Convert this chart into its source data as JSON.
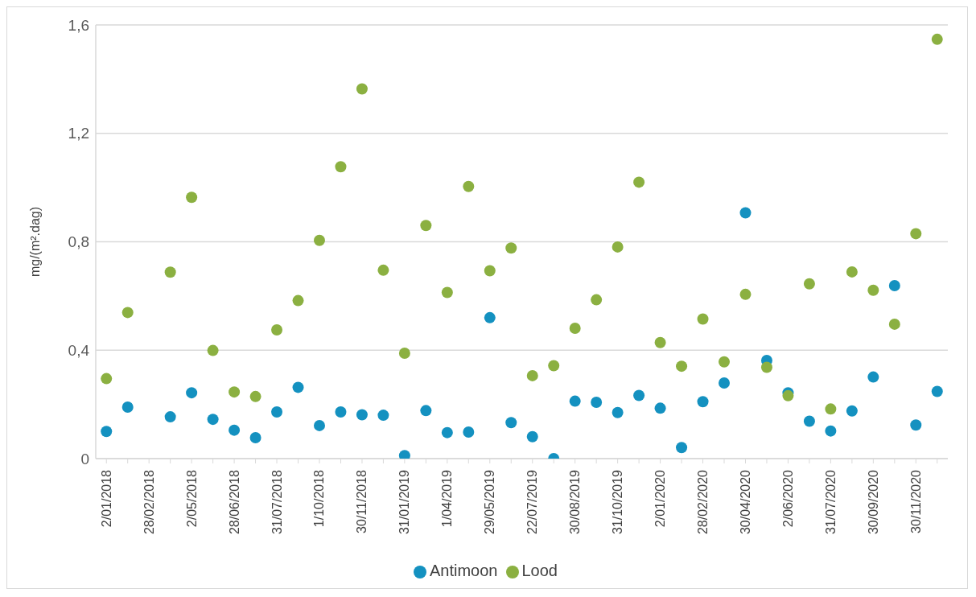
{
  "chart_data": {
    "type": "scatter",
    "ylabel": "mg/(m².dag)",
    "categories": [
      "2/01/2018",
      null,
      "28/02/2018",
      null,
      "2/05/2018",
      null,
      "28/06/2018",
      null,
      "31/07/2018",
      null,
      "1/10/2018",
      null,
      "30/11/2018",
      null,
      "31/01/2019",
      null,
      "1/04/2019",
      null,
      "29/05/2019",
      null,
      "22/07/2019",
      null,
      "30/08/2019",
      null,
      "31/10/2019",
      null,
      "2/01/2020",
      null,
      "28/02/2020",
      null,
      "30/04/2020",
      null,
      "2/06/2020",
      null,
      "31/07/2020",
      null,
      "30/09/2020",
      null,
      "30/11/2020",
      null
    ],
    "series": [
      {
        "name": "Antimoon",
        "color": "#1491c0",
        "values": [
          0.1,
          0.19,
          null,
          0.154,
          0.243,
          0.145,
          0.105,
          0.077,
          0.172,
          0.263,
          0.122,
          0.172,
          0.162,
          0.16,
          0.011,
          0.177,
          0.096,
          0.098,
          0.52,
          0.133,
          0.081,
          0.0,
          0.212,
          0.208,
          0.17,
          0.233,
          0.186,
          0.041,
          0.21,
          0.279,
          0.907,
          0.362,
          0.243,
          0.138,
          0.102,
          0.176,
          0.301,
          0.638,
          0.124,
          0.248
        ]
      },
      {
        "name": "Lood",
        "color": "#8bb041",
        "values": [
          0.295,
          0.539,
          null,
          0.688,
          0.964,
          0.399,
          0.246,
          0.229,
          0.475,
          0.583,
          0.805,
          1.077,
          1.364,
          0.695,
          0.389,
          0.86,
          0.613,
          1.004,
          0.693,
          0.777,
          0.306,
          0.343,
          0.481,
          0.586,
          0.781,
          1.02,
          0.428,
          0.341,
          0.515,
          0.357,
          0.606,
          0.337,
          0.232,
          0.645,
          0.183,
          0.689,
          0.621,
          0.496,
          0.83,
          1.547
        ]
      }
    ],
    "ylim": [
      0,
      1.6
    ],
    "yticks": [
      {
        "value": 0,
        "label": "0"
      },
      {
        "value": 0.4,
        "label": "0,4"
      },
      {
        "value": 0.8,
        "label": "0,8"
      },
      {
        "value": 1.2,
        "label": "1,2"
      },
      {
        "value": 1.6,
        "label": "1,6"
      }
    ],
    "grid": "y",
    "legend": "bottom",
    "marker": "circle"
  }
}
